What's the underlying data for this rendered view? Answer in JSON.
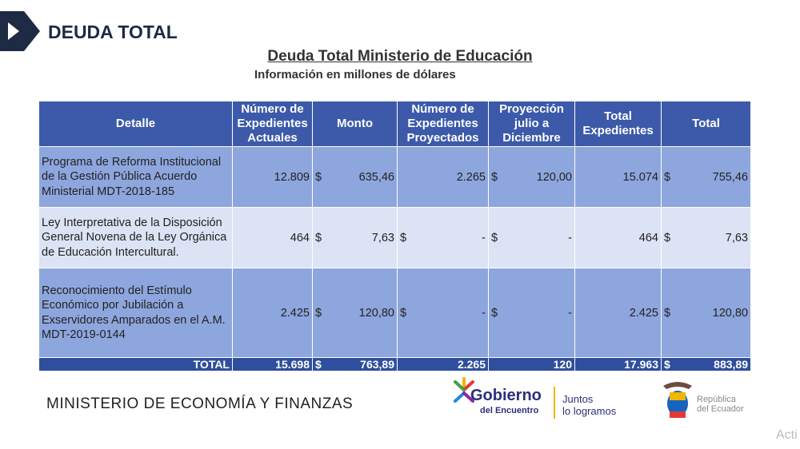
{
  "header": {
    "title": "DEUDA TOTAL"
  },
  "heading": {
    "title": "Deuda Total Ministerio de Educación",
    "subtitle": "Información en millones de dólares"
  },
  "table": {
    "columns": [
      "Detalle",
      "Número de Expedientes Actuales",
      "Monto",
      "Número de Expedientes Proyectados",
      "Proyección julio a Diciembre",
      "Total Expedientes",
      "Total"
    ],
    "rows": [
      [
        "Programa de Reforma Institucional de la Gestión Pública Acuerdo Ministerial MDT-2018-185",
        "12.809",
        {
          "currency": "$",
          "amount": "635,46"
        },
        "2.265",
        {
          "currency": "$",
          "amount": "120,00"
        },
        "15.074",
        {
          "currency": "$",
          "amount": "755,46"
        }
      ],
      [
        "Ley Interpretativa de la Disposición General Novena de la Ley Orgánica de Educación Intercultural.",
        "464",
        {
          "currency": "$",
          "amount": "7,63"
        },
        {
          "currency": "$",
          "amount": "-"
        },
        {
          "currency": "$",
          "amount": "-"
        },
        "464",
        {
          "currency": "$",
          "amount": "7,63"
        }
      ],
      [
        "Reconocimiento del Estímulo Económico por Jubilación a Exservidores Amparados en el A.M. MDT-2019-0144",
        "2.425",
        {
          "currency": "$",
          "amount": "120,80"
        },
        {
          "currency": "$",
          "amount": "-"
        },
        {
          "currency": "$",
          "amount": "-"
        },
        "2.425",
        {
          "currency": "$",
          "amount": "120,80"
        }
      ]
    ],
    "total": [
      "TOTAL",
      "15.698",
      {
        "currency": "$",
        "amount": "763,89"
      },
      "2.265",
      "120",
      "17.963",
      {
        "currency": "$",
        "amount": "883,89"
      }
    ]
  },
  "footer": {
    "ministry": "MINISTERIO DE ECONOMÍA Y FINANZAS",
    "logo_main": "Gobierno",
    "logo_sub": "del Encuentro",
    "slogan": [
      "Juntos",
      "lo logramos"
    ],
    "republic": [
      "República",
      "del Ecuador"
    ]
  },
  "watermark": "Acti"
}
